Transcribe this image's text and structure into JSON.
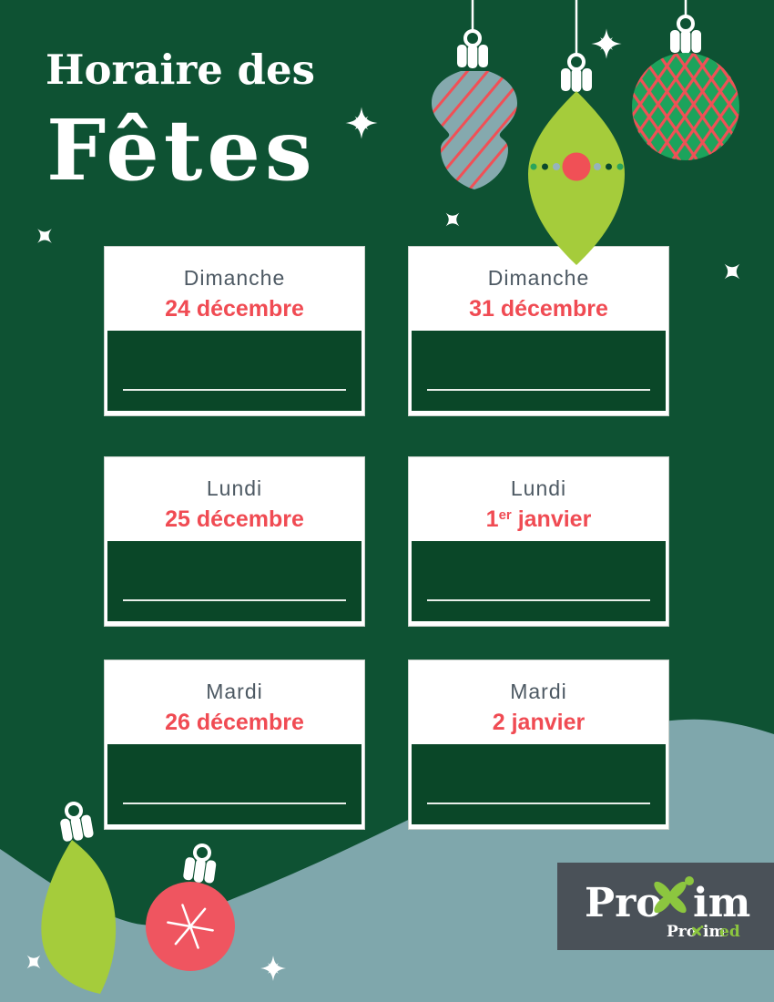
{
  "title": {
    "line1": "Horaire des",
    "line2": "Fêtes"
  },
  "cards": [
    {
      "day": "Dimanche",
      "date_pre": "24 décembre",
      "date_sup": "",
      "date_post": ""
    },
    {
      "day": "Dimanche",
      "date_pre": "31 décembre",
      "date_sup": "",
      "date_post": ""
    },
    {
      "day": "Lundi",
      "date_pre": "25 décembre",
      "date_sup": "",
      "date_post": ""
    },
    {
      "day": "Lundi",
      "date_pre": "1",
      "date_sup": "er",
      "date_post": " janvier"
    },
    {
      "day": "Mardi",
      "date_pre": "26 décembre",
      "date_sup": "",
      "date_post": ""
    },
    {
      "day": "Mardi",
      "date_pre": "2 janvier",
      "date_sup": "",
      "date_post": ""
    }
  ],
  "logo": {
    "brand_pre": "Pro",
    "brand_post": "im",
    "sub_pre": "Pro",
    "sub_mid": "im",
    "sub_suffix": "ed"
  },
  "icons": [
    "striped-ornament-icon",
    "teardrop-ornament-icon",
    "crosshatch-ball-ornament-icon",
    "leaf-ornament-icon",
    "snowflake-ball-ornament-icon",
    "sparkle-icon",
    "x-sparkle-icon"
  ],
  "colors": {
    "bg_green": "#0E5233",
    "card_green": "#0A4728",
    "accent_red": "#F04B53",
    "day_gray": "#4D5963",
    "lime_green": "#A5CC3B",
    "ball_green": "#1CA35C",
    "stripe_red": "#F05056",
    "blue_ornament": "#85A9AE",
    "wave_blue": "#7FA7AC",
    "ball_red": "#EF5560",
    "logo_box_gray": "#4A5158",
    "logo_green": "#8CC63F",
    "dot_blue": "#96B3BE",
    "dot_dark": "#0B4A2C",
    "dot_green": "#2AA45C",
    "write_line": "#E9EFEA",
    "card_border": "#C9D0CB"
  }
}
